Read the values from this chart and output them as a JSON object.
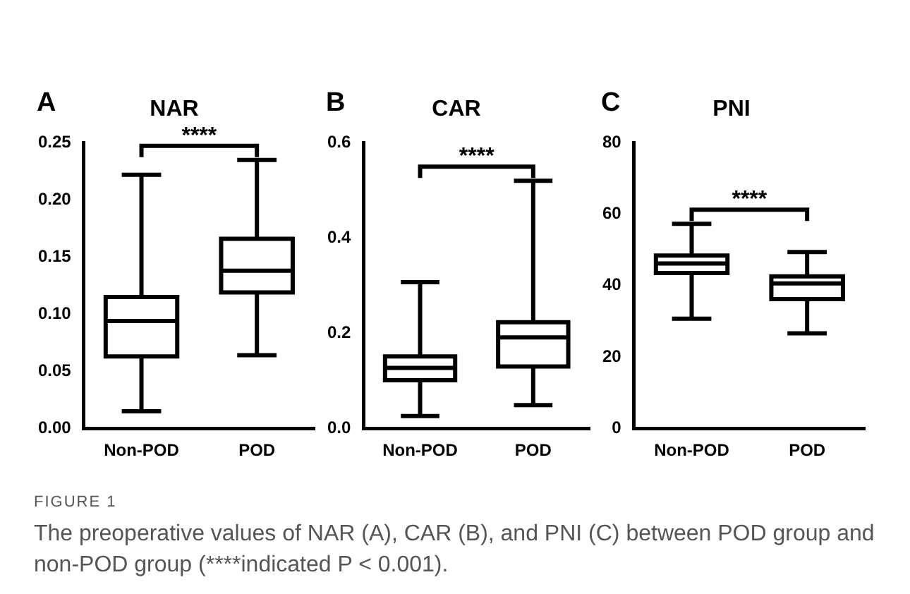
{
  "chart_data": [
    {
      "type": "box",
      "title": "NAR",
      "categories": [
        "Non-POD",
        "POD"
      ],
      "color": "#000000",
      "boxes": [
        {
          "low": 0.015,
          "q1": 0.063,
          "median": 0.094,
          "q3": 0.115,
          "high": 0.222
        },
        {
          "low": 0.064,
          "q1": 0.119,
          "median": 0.138,
          "q3": 0.166,
          "high": 0.235
        }
      ],
      "ylim": [
        0,
        0.25
      ],
      "yticks": [
        {
          "value": 0,
          "label": "0.00"
        },
        {
          "value": 0.05,
          "label": "0.05"
        },
        {
          "value": 0.1,
          "label": "0.10"
        },
        {
          "value": 0.15,
          "label": "0.15"
        },
        {
          "value": 0.2,
          "label": "0.20"
        },
        {
          "value": 0.25,
          "label": "0.25"
        }
      ],
      "annotations": [
        "A",
        "****",
        "FIGURE 1",
        "The preoperative values of NAR (A), CAR (B), and PNI (C) between POD group and non-POD group (****indicated P < 0.001)."
      ]
    },
    {
      "type": "box",
      "title": "CAR",
      "categories": [
        "Non-POD",
        "POD"
      ],
      "color": "#000000",
      "boxes": [
        {
          "low": 0.026,
          "q1": 0.101,
          "median": 0.127,
          "q3": 0.151,
          "high": 0.307
        },
        {
          "low": 0.049,
          "q1": 0.13,
          "median": 0.191,
          "q3": 0.223,
          "high": 0.52
        }
      ],
      "ylim": [
        0,
        0.6
      ],
      "yticks": [
        {
          "value": 0,
          "label": "0.0"
        },
        {
          "value": 0.2,
          "label": "0.2"
        },
        {
          "value": 0.4,
          "label": "0.4"
        },
        {
          "value": 0.6,
          "label": "0.6"
        }
      ],
      "annotations": [
        "B",
        "****"
      ]
    },
    {
      "type": "box",
      "title": "PNI",
      "categories": [
        "Non-POD",
        "POD"
      ],
      "color": "#000000",
      "boxes": [
        {
          "low": 30.7,
          "q1": 43.5,
          "median": 46.2,
          "q3": 48.4,
          "high": 57.3
        },
        {
          "low": 26.6,
          "q1": 36.2,
          "median": 40.6,
          "q3": 42.6,
          "high": 49.4
        }
      ],
      "ylim": [
        0,
        80
      ],
      "yticks": [
        0,
        20,
        40,
        60,
        80
      ],
      "annotations": [
        "C",
        "****"
      ]
    }
  ]
}
